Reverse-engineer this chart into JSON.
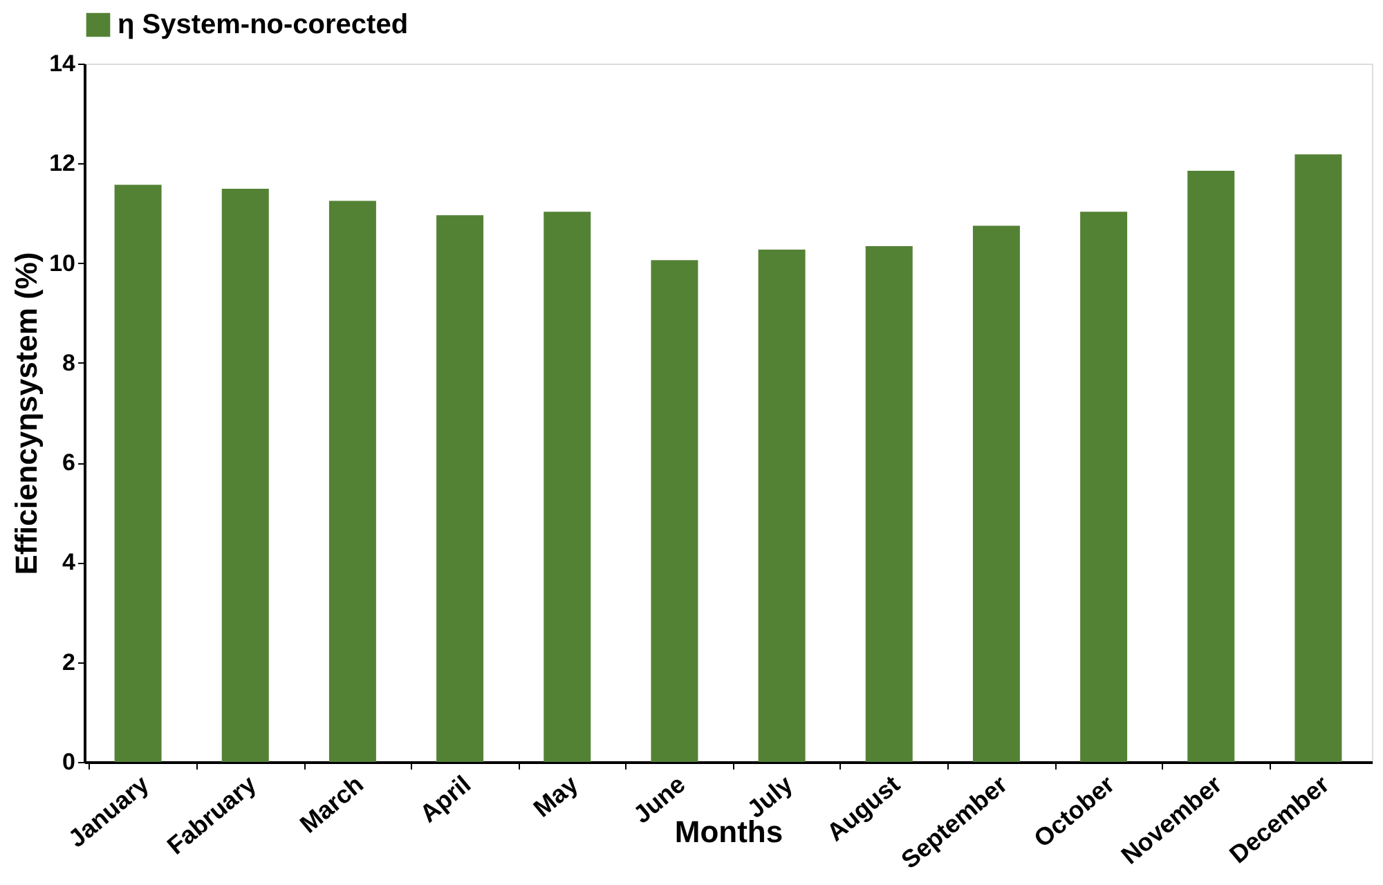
{
  "chart_data": {
    "type": "bar",
    "xlabel": "Months",
    "ylabel": "Efficiencyηsystem (%)",
    "categories": [
      "January",
      "Fabruary",
      "March",
      "April",
      "May",
      "June",
      "July",
      "August",
      "September",
      "October",
      "November",
      "December"
    ],
    "series": [
      {
        "name": "η System-no-corected",
        "color": "#548235",
        "values": [
          11.57,
          11.49,
          11.25,
          10.96,
          11.03,
          10.06,
          10.27,
          10.34,
          10.75,
          11.03,
          11.85,
          12.18
        ]
      }
    ],
    "ylim": [
      0,
      14
    ],
    "yticks": [
      0,
      2,
      4,
      6,
      8,
      10,
      12,
      14
    ],
    "grid": false,
    "legend": "top"
  }
}
